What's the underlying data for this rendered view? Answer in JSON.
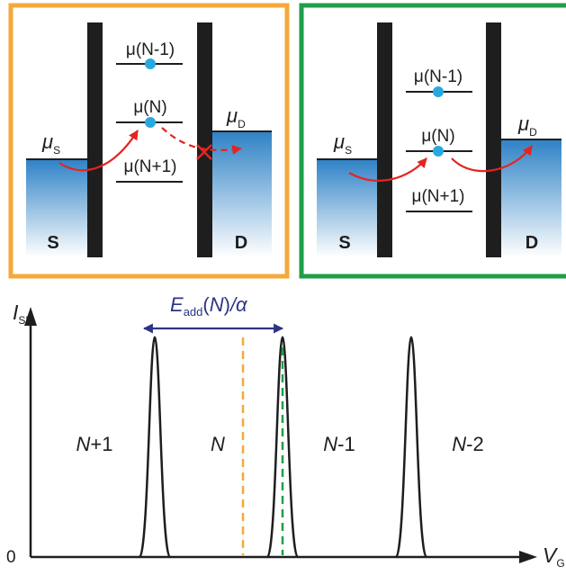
{
  "panels": [
    {
      "frame_color": "#f5a93a",
      "mu_S": {
        "sym": "μ",
        "sub": "S"
      },
      "mu_D": {
        "sym": "μ",
        "sub": "D"
      },
      "levels": [
        "μ(N-1)",
        "μ(N)",
        "μ(N+1)"
      ],
      "source_label": "S",
      "drain_label": "D",
      "transport": "blocked"
    },
    {
      "frame_color": "#1f9e4a",
      "mu_S": {
        "sym": "μ",
        "sub": "S"
      },
      "mu_D": {
        "sym": "μ",
        "sub": "D"
      },
      "levels": [
        "μ(N-1)",
        "μ(N)",
        "μ(N+1)"
      ],
      "source_label": "S",
      "drain_label": "D",
      "transport": "allowed"
    }
  ],
  "plot": {
    "y_axis": {
      "symbol": "I",
      "sub": "SD"
    },
    "x_axis": {
      "symbol": "V",
      "sub": "G"
    },
    "origin": "0",
    "addition_energy": {
      "E": "E",
      "sub": "add",
      "N": "N",
      "rest": "/α"
    },
    "regions": [
      {
        "italic": "N",
        "suffix": "+1"
      },
      {
        "italic": "N",
        "suffix": ""
      },
      {
        "italic": "N",
        "suffix": "-1"
      },
      {
        "italic": "N",
        "suffix": "-2"
      }
    ],
    "peak_count": 3,
    "marker_colors": {
      "orange": "#f5a93a",
      "green": "#1f9e4a"
    }
  },
  "colors": {
    "barrier": "#1e1e1e",
    "reservoir_top": "#2e82c6",
    "reservoir_bottom": "#ffffff",
    "dot": "#29a8e0",
    "arrow": "#e52421",
    "double_arrow": "#2c3583"
  }
}
